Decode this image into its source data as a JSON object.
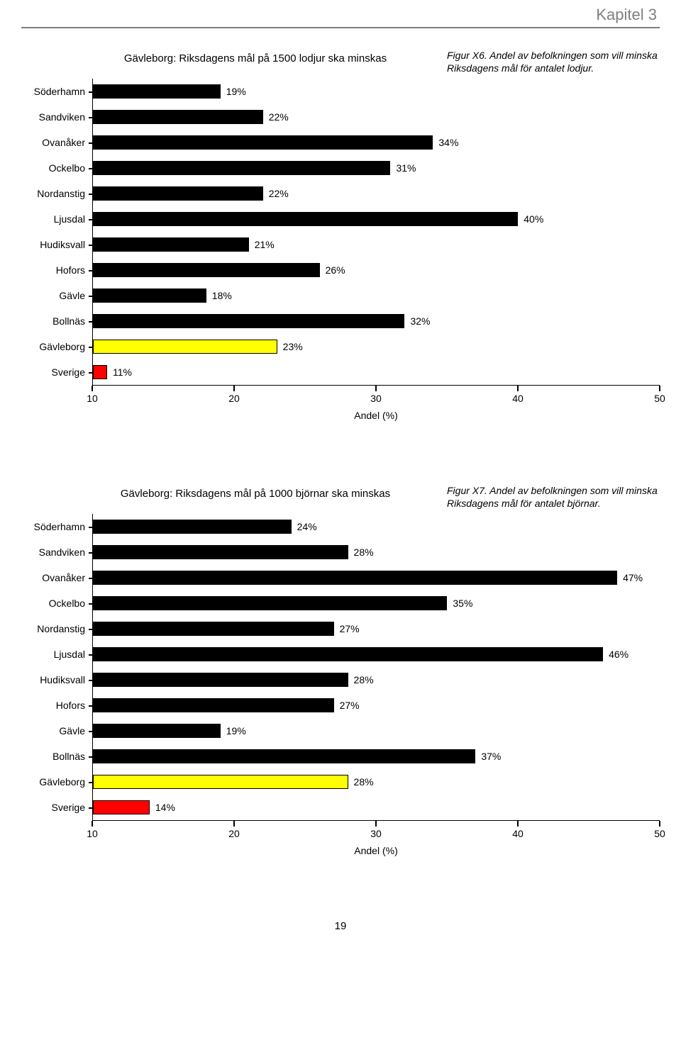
{
  "chapter_label": "Kapitel 3",
  "page_number": "19",
  "chart1": {
    "type": "bar",
    "title": "Gävleborg: Riksdagens mål på 1500 lodjur ska minskas",
    "caption": "Figur X6. Andel av befolkningen som vill minska Riksdagens mål för antalet lodjur.",
    "x_title": "Andel (%)",
    "xmin": 10,
    "xmax": 50,
    "xticks": [
      10,
      20,
      30,
      40,
      50
    ],
    "bar_border": "#000000",
    "colors": {
      "normal": "#000000",
      "summary": "#ffff00",
      "national": "#ff0000"
    },
    "rows": [
      {
        "name": "Söderhamn",
        "value": 19,
        "label": "19%",
        "color": "normal"
      },
      {
        "name": "Sandviken",
        "value": 22,
        "label": "22%",
        "color": "normal"
      },
      {
        "name": "Ovanåker",
        "value": 34,
        "label": "34%",
        "color": "normal"
      },
      {
        "name": "Ockelbo",
        "value": 31,
        "label": "31%",
        "color": "normal"
      },
      {
        "name": "Nordanstig",
        "value": 22,
        "label": "22%",
        "color": "normal"
      },
      {
        "name": "Ljusdal",
        "value": 40,
        "label": "40%",
        "color": "normal"
      },
      {
        "name": "Hudiksvall",
        "value": 21,
        "label": "21%",
        "color": "normal"
      },
      {
        "name": "Hofors",
        "value": 26,
        "label": "26%",
        "color": "normal"
      },
      {
        "name": "Gävle",
        "value": 18,
        "label": "18%",
        "color": "normal"
      },
      {
        "name": "Bollnäs",
        "value": 32,
        "label": "32%",
        "color": "normal"
      },
      {
        "name": "Gävleborg",
        "value": 23,
        "label": "23%",
        "color": "summary"
      },
      {
        "name": "Sverige",
        "value": 11,
        "label": "11%",
        "color": "national"
      }
    ]
  },
  "chart2": {
    "type": "bar",
    "title": "Gävleborg: Riksdagens mål på 1000 björnar ska minskas",
    "caption": "Figur X7. Andel av befolkningen som vill minska Riksdagens mål för antalet björnar.",
    "x_title": "Andel (%)",
    "xmin": 10,
    "xmax": 50,
    "xticks": [
      10,
      20,
      30,
      40,
      50
    ],
    "bar_border": "#000000",
    "colors": {
      "normal": "#000000",
      "summary": "#ffff00",
      "national": "#ff0000"
    },
    "rows": [
      {
        "name": "Söderhamn",
        "value": 24,
        "label": "24%",
        "color": "normal"
      },
      {
        "name": "Sandviken",
        "value": 28,
        "label": "28%",
        "color": "normal"
      },
      {
        "name": "Ovanåker",
        "value": 47,
        "label": "47%",
        "color": "normal"
      },
      {
        "name": "Ockelbo",
        "value": 35,
        "label": "35%",
        "color": "normal"
      },
      {
        "name": "Nordanstig",
        "value": 27,
        "label": "27%",
        "color": "normal"
      },
      {
        "name": "Ljusdal",
        "value": 46,
        "label": "46%",
        "color": "normal"
      },
      {
        "name": "Hudiksvall",
        "value": 28,
        "label": "28%",
        "color": "normal"
      },
      {
        "name": "Hofors",
        "value": 27,
        "label": "27%",
        "color": "normal"
      },
      {
        "name": "Gävle",
        "value": 19,
        "label": "19%",
        "color": "normal"
      },
      {
        "name": "Bollnäs",
        "value": 37,
        "label": "37%",
        "color": "normal"
      },
      {
        "name": "Gävleborg",
        "value": 28,
        "label": "28%",
        "color": "summary"
      },
      {
        "name": "Sverige",
        "value": 14,
        "label": "14%",
        "color": "national"
      }
    ]
  }
}
